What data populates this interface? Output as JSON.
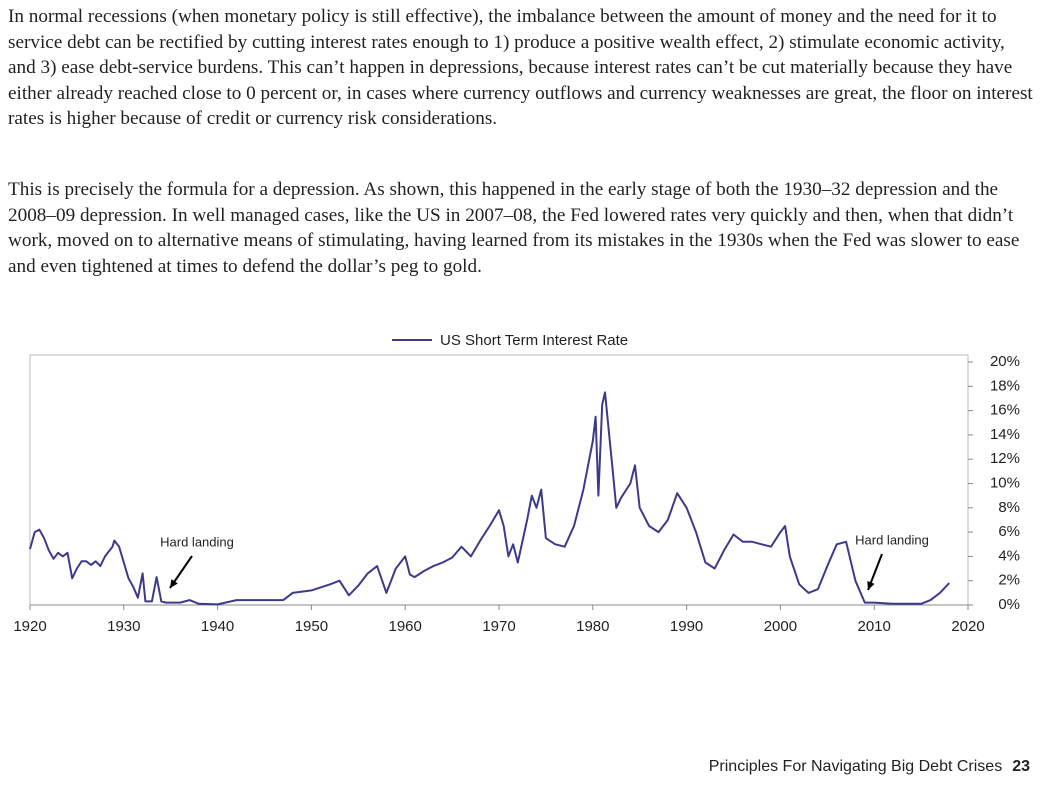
{
  "paragraphs": [
    "In normal recessions (when monetary policy is still effective), the imbalance between the amount of money and the need for it to service debt can be rectified by cutting interest rates enough to 1) produce a positive wealth effect, 2) stimulate economic activity, and 3) ease debt-service burdens. This can’t happen in depressions, because interest rates can’t be cut materially because they have either already reached close to 0 percent or, in cases where currency outflows and currency weaknesses are great, the floor on interest rates is higher because of credit or currency risk considerations.",
    "This is precisely the formula for a depression. As shown, this happened in the early stage of both the 1930–32 depression and the 2008–09 depression. In well managed cases, like the US in 2007–08, the Fed lowered rates very quickly and then, when that didn’t work, moved on to alternative means of stimulating, having learned from its mistakes in the 1930s when the Fed was slower to ease and even tightened at times to defend the dollar’s peg to gold."
  ],
  "chart_data": {
    "type": "line",
    "x": [
      1920,
      1920.5,
      1921,
      1921.5,
      1922,
      1922.5,
      1923,
      1923.5,
      1924,
      1924.5,
      1925,
      1925.5,
      1926,
      1926.5,
      1927,
      1927.5,
      1928,
      1928.8,
      1929,
      1929.5,
      1930,
      1930.5,
      1931,
      1931.5,
      1932,
      1932.3,
      1933,
      1933.5,
      1934,
      1934.5,
      1935,
      1936,
      1937,
      1938,
      1940,
      1942,
      1946,
      1947,
      1948,
      1949,
      1950,
      1952,
      1953,
      1954,
      1955,
      1956,
      1957,
      1958,
      1959,
      1960,
      1960.5,
      1961,
      1962,
      1963,
      1964,
      1965,
      1966,
      1967,
      1968,
      1969,
      1970,
      1970.5,
      1971,
      1971.5,
      1972,
      1973,
      1973.5,
      1974,
      1974.5,
      1975,
      1976,
      1977,
      1978,
      1979,
      1980,
      1980.3,
      1980.6,
      1981,
      1981.3,
      1982,
      1982.5,
      1983,
      1984,
      1984.5,
      1985,
      1986,
      1987,
      1988,
      1989,
      1990,
      1991,
      1992,
      1993,
      1994,
      1995,
      1996,
      1997,
      1998,
      1999,
      2000,
      2000.5,
      2001,
      2002,
      2003,
      2004,
      2005,
      2006,
      2007,
      2008,
      2009,
      2010,
      2012,
      2015,
      2016,
      2017,
      2018
    ],
    "series": [
      {
        "name": "US Short Term Interest Rate",
        "color": "#3d3a8c",
        "values": [
          4.6,
          6.0,
          6.2,
          5.5,
          4.5,
          3.8,
          4.3,
          4.0,
          4.3,
          2.2,
          3.0,
          3.6,
          3.6,
          3.3,
          3.6,
          3.2,
          4.0,
          4.8,
          5.3,
          4.8,
          3.5,
          2.2,
          1.5,
          0.6,
          2.6,
          0.3,
          0.3,
          2.3,
          0.3,
          0.2,
          0.2,
          0.2,
          0.4,
          0.1,
          0.05,
          0.4,
          0.4,
          0.4,
          1.0,
          1.1,
          1.2,
          1.7,
          2.0,
          0.8,
          1.6,
          2.6,
          3.2,
          1.0,
          3.0,
          4.0,
          2.5,
          2.3,
          2.8,
          3.2,
          3.5,
          3.9,
          4.8,
          4.0,
          5.3,
          6.5,
          7.8,
          6.5,
          4.0,
          5.0,
          3.5,
          7.0,
          9.0,
          8.0,
          9.5,
          5.5,
          5.0,
          4.8,
          6.5,
          9.5,
          13.5,
          15.5,
          9.0,
          16.5,
          17.5,
          12.0,
          8.0,
          8.8,
          10.0,
          11.5,
          8.0,
          6.5,
          6.0,
          7.0,
          9.2,
          8.0,
          6.0,
          3.5,
          3.0,
          4.5,
          5.8,
          5.2,
          5.2,
          5.0,
          4.8,
          6.0,
          6.5,
          4.0,
          1.7,
          1.0,
          1.3,
          3.2,
          5.0,
          5.2,
          2.0,
          0.2,
          0.2,
          0.1,
          0.1,
          0.4,
          1.0,
          1.8
        ]
      }
    ],
    "xlim": [
      1920,
      2020
    ],
    "xticks": [
      1920,
      1930,
      1940,
      1950,
      1960,
      1970,
      1980,
      1990,
      2000,
      2010,
      2020
    ],
    "ylim": [
      0,
      20
    ],
    "yticks": [
      {
        "value": 0,
        "label": "0%"
      },
      {
        "value": 2,
        "label": "2%"
      },
      {
        "value": 4,
        "label": "4%"
      },
      {
        "value": 6,
        "label": "6%"
      },
      {
        "value": 8,
        "label": "8%"
      },
      {
        "value": 10,
        "label": "10%"
      },
      {
        "value": 12,
        "label": "12%"
      },
      {
        "value": 14,
        "label": "14%"
      },
      {
        "value": 16,
        "label": "16%"
      },
      {
        "value": 18,
        "label": "18%"
      },
      {
        "value": 20,
        "label": "20%"
      }
    ],
    "annotations": [
      "Hard landing",
      "Hard landing"
    ],
    "legend": "top"
  },
  "footer": {
    "title": "Principles For Navigating Big Debt Crises",
    "page": "23"
  }
}
